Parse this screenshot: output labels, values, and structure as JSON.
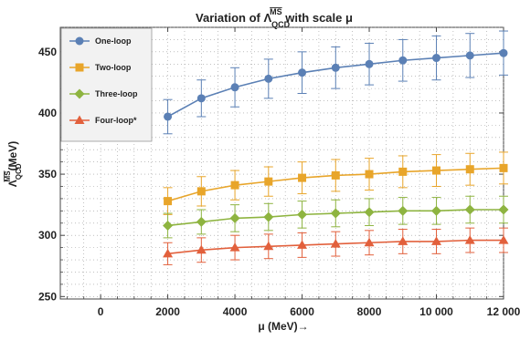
{
  "chart_data": {
    "type": "line",
    "title_prefix": "Variation of Λ",
    "title_super": "MS",
    "title_sub": "QCD",
    "title_suffix": " with scale μ",
    "xlabel": "μ (MeV)→",
    "ylabel_base": "Λ",
    "ylabel_super": "MS",
    "ylabel_sub": "QCD",
    "ylabel_suffix": "(MeV)",
    "xlim": [
      -1200,
      12000
    ],
    "ylim": [
      248,
      470
    ],
    "xticks": [
      0,
      2000,
      4000,
      6000,
      8000,
      10000,
      12000
    ],
    "xtick_labels": [
      "0",
      "2000",
      "4000",
      "6000",
      "8000",
      "10 000",
      "12 000"
    ],
    "yticks": [
      250,
      300,
      350,
      400,
      450
    ],
    "yticks_labels": [
      "250",
      "300",
      "350",
      "400",
      "450"
    ],
    "grid": "dotted",
    "legend_position": "top-left",
    "x": [
      2000,
      3000,
      4000,
      5000,
      6000,
      7000,
      8000,
      9000,
      10000,
      11000,
      12000
    ],
    "series": [
      {
        "name": "One-loop",
        "marker": "circle",
        "color": "#5b80b5",
        "values": [
          397,
          412,
          421,
          428,
          433,
          437,
          440,
          443,
          445,
          447,
          449
        ],
        "errors": [
          14,
          15,
          16,
          16,
          17,
          17,
          17,
          17,
          18,
          18,
          18
        ]
      },
      {
        "name": "Two-loop",
        "marker": "square",
        "color": "#e8a52a",
        "values": [
          328,
          336,
          341,
          344,
          347,
          349,
          350,
          352,
          353,
          354,
          355
        ],
        "errors": [
          11,
          12,
          12,
          12,
          13,
          13,
          13,
          13,
          13,
          13,
          13
        ]
      },
      {
        "name": "Three-loop",
        "marker": "diamond",
        "color": "#8eb440",
        "values": [
          308,
          311,
          314,
          315,
          317,
          318,
          319,
          320,
          320,
          321,
          321
        ],
        "errors": [
          10,
          10,
          11,
          11,
          11,
          11,
          11,
          11,
          11,
          11,
          11
        ]
      },
      {
        "name": "Four-loop*",
        "marker": "triangle",
        "color": "#e2603c",
        "values": [
          285,
          288,
          290,
          291,
          292,
          293,
          294,
          295,
          295,
          296,
          296
        ],
        "errors": [
          9,
          10,
          10,
          10,
          10,
          10,
          10,
          10,
          10,
          10,
          10
        ]
      }
    ]
  }
}
